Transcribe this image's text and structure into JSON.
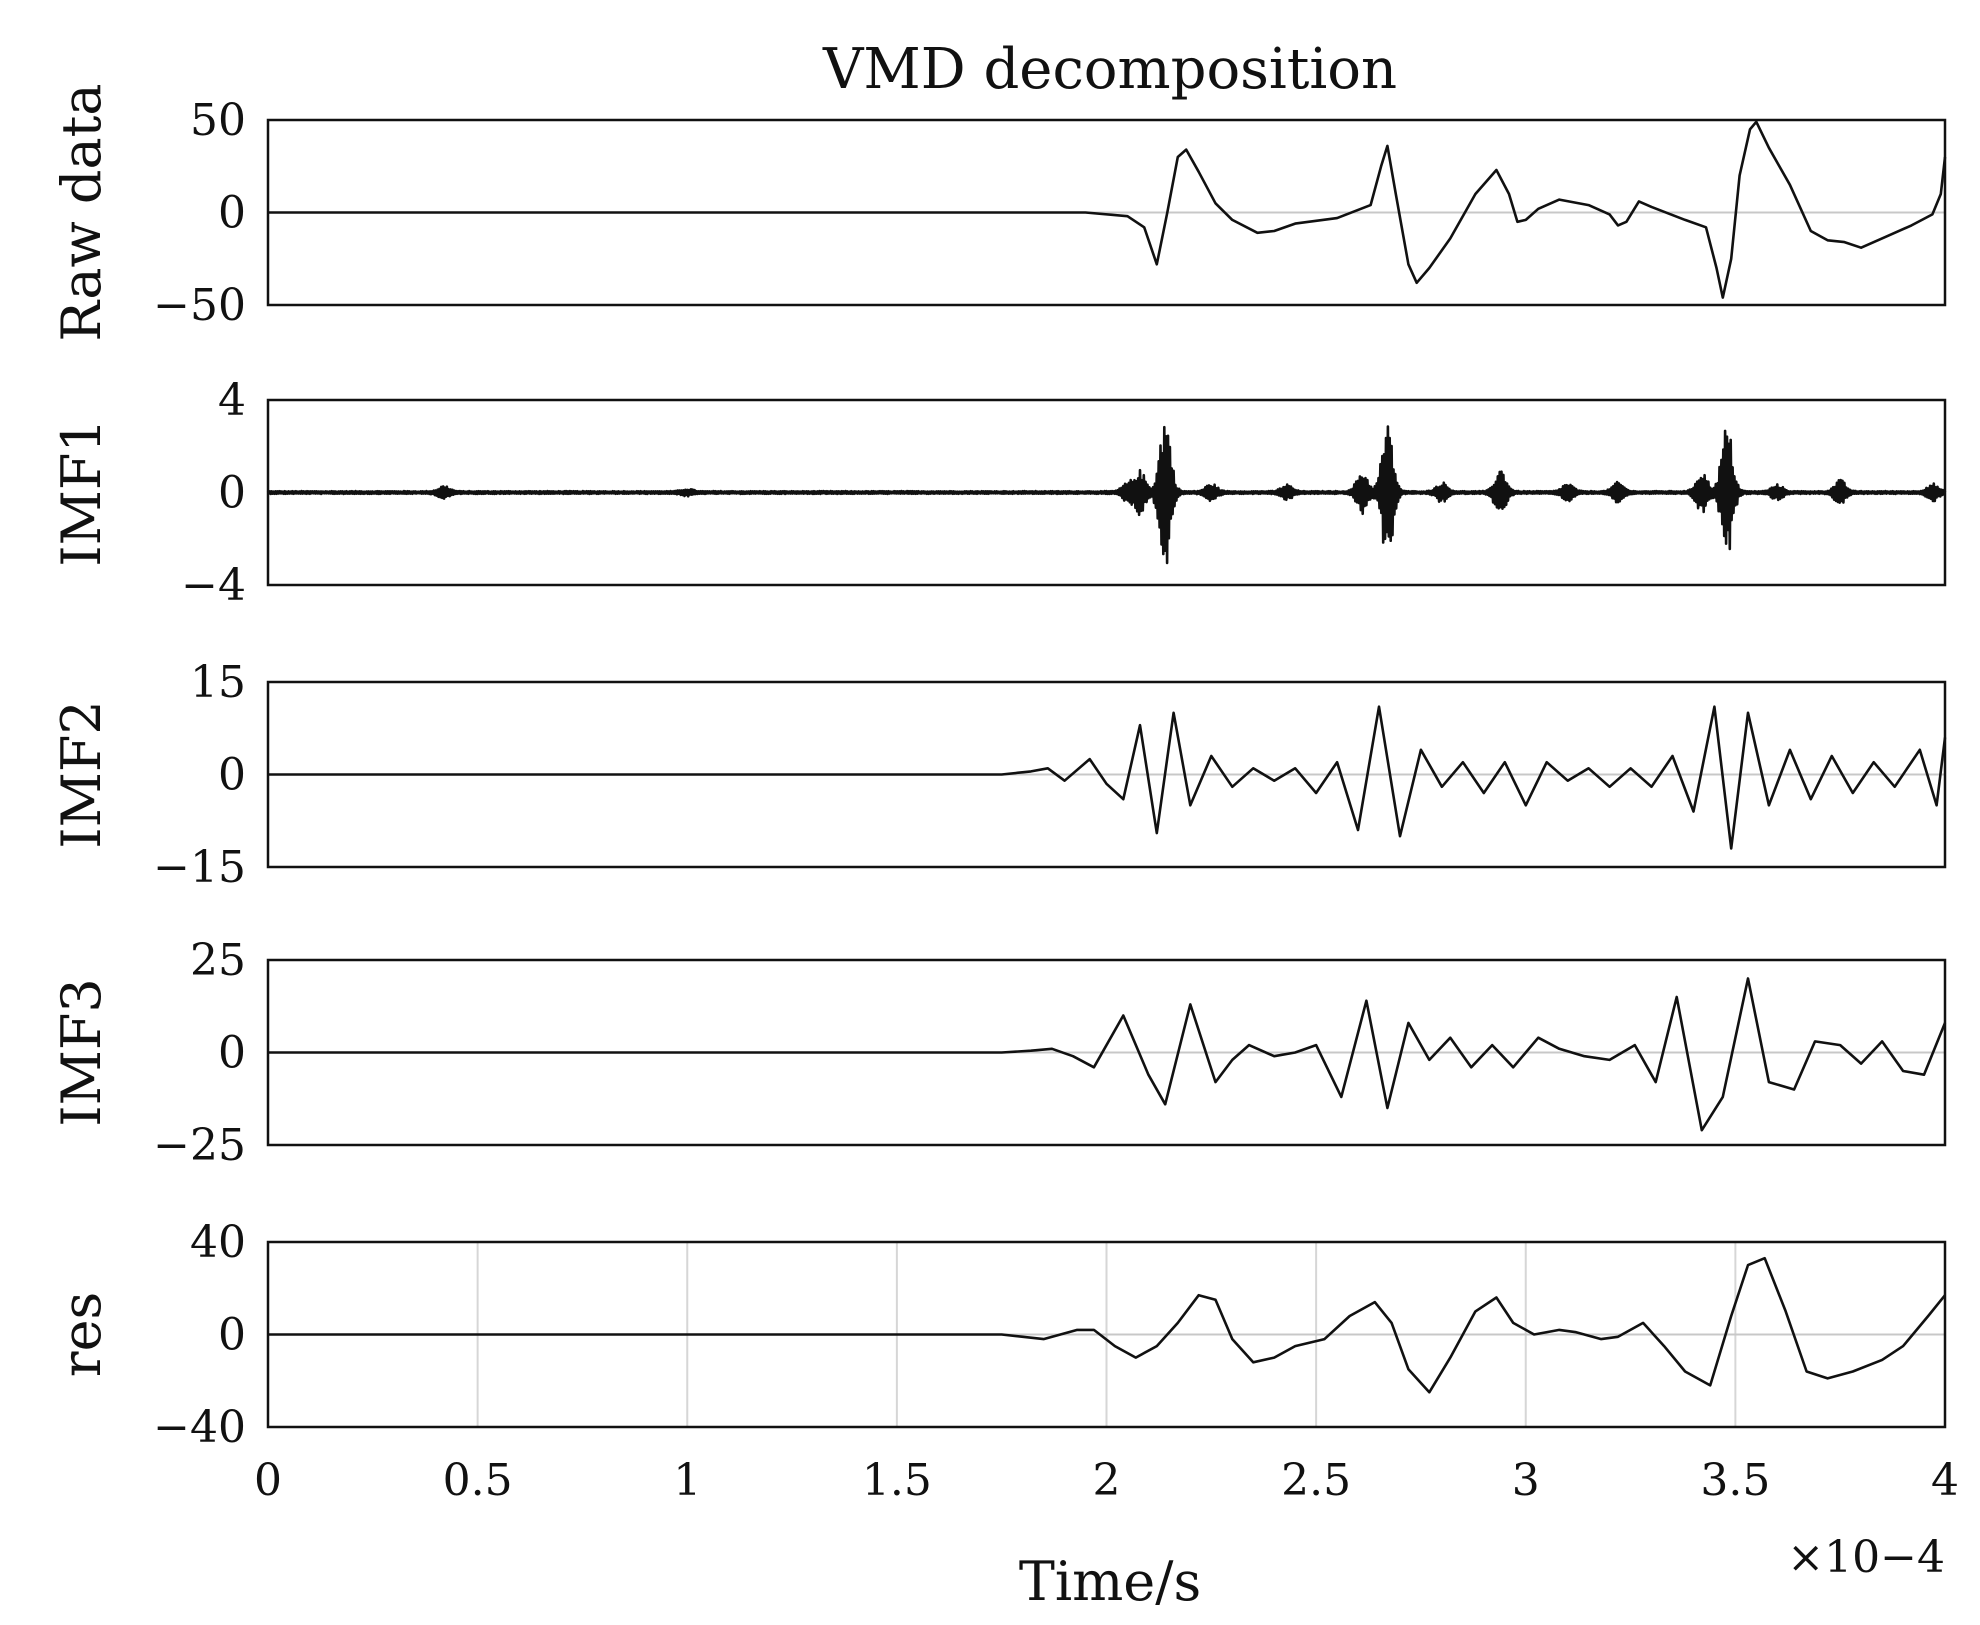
{
  "chart_data": {
    "type": "line",
    "title": "VMD decomposition",
    "xlabel": "Time/s",
    "x_exponent": "×10−4",
    "x_scale_power": -4,
    "xlim": [
      0,
      4
    ],
    "xticks": [
      0,
      0.5,
      1,
      1.5,
      2,
      2.5,
      3,
      3.5,
      4
    ],
    "xtick_labels": [
      "0",
      "0.5",
      "1",
      "1.5",
      "2",
      "2.5",
      "3",
      "3.5",
      "4"
    ],
    "grid_bottom_panel": true,
    "panels": [
      {
        "ylabel": "Raw data",
        "ylim": [
          -50,
          50
        ],
        "ytick_labels": [
          "50",
          "0",
          "−50"
        ],
        "points": [
          [
            0,
            0
          ],
          [
            1.8,
            0
          ],
          [
            1.95,
            0
          ],
          [
            2.05,
            -2
          ],
          [
            2.09,
            -8
          ],
          [
            2.12,
            -28
          ],
          [
            2.145,
            0
          ],
          [
            2.17,
            30
          ],
          [
            2.19,
            34
          ],
          [
            2.22,
            22
          ],
          [
            2.26,
            5
          ],
          [
            2.3,
            -4
          ],
          [
            2.36,
            -11
          ],
          [
            2.4,
            -10
          ],
          [
            2.45,
            -6
          ],
          [
            2.55,
            -3
          ],
          [
            2.63,
            4
          ],
          [
            2.655,
            25
          ],
          [
            2.67,
            36
          ],
          [
            2.69,
            10
          ],
          [
            2.72,
            -28
          ],
          [
            2.74,
            -38
          ],
          [
            2.77,
            -30
          ],
          [
            2.82,
            -14
          ],
          [
            2.88,
            10
          ],
          [
            2.93,
            23
          ],
          [
            2.96,
            10
          ],
          [
            2.98,
            -5
          ],
          [
            3.0,
            -4
          ],
          [
            3.03,
            2
          ],
          [
            3.08,
            7
          ],
          [
            3.15,
            4
          ],
          [
            3.2,
            -1
          ],
          [
            3.22,
            -7
          ],
          [
            3.24,
            -5
          ],
          [
            3.27,
            6
          ],
          [
            3.3,
            3
          ],
          [
            3.38,
            -4
          ],
          [
            3.43,
            -8
          ],
          [
            3.455,
            -30
          ],
          [
            3.47,
            -46
          ],
          [
            3.49,
            -25
          ],
          [
            3.51,
            20
          ],
          [
            3.535,
            45
          ],
          [
            3.55,
            49
          ],
          [
            3.58,
            35
          ],
          [
            3.63,
            15
          ],
          [
            3.68,
            -10
          ],
          [
            3.72,
            -15
          ],
          [
            3.76,
            -16
          ],
          [
            3.8,
            -19
          ],
          [
            3.86,
            -13
          ],
          [
            3.92,
            -7
          ],
          [
            3.97,
            -1
          ],
          [
            3.99,
            10
          ],
          [
            4.0,
            30
          ]
        ]
      },
      {
        "ylabel": "IMF1",
        "ylim": [
          -4,
          4
        ],
        "ytick_labels": [
          "4",
          "0",
          "−4"
        ],
        "bursts": [
          [
            0.42,
            0.25
          ],
          [
            1.0,
            0.12
          ],
          [
            2.05,
            0.35
          ],
          [
            2.08,
            0.9
          ],
          [
            2.14,
            3.3
          ],
          [
            2.25,
            0.35
          ],
          [
            2.43,
            0.3
          ],
          [
            2.61,
            0.9
          ],
          [
            2.67,
            2.9
          ],
          [
            2.8,
            0.4
          ],
          [
            2.94,
            1.0
          ],
          [
            3.1,
            0.35
          ],
          [
            3.22,
            0.4
          ],
          [
            3.42,
            0.9
          ],
          [
            3.48,
            2.9
          ],
          [
            3.6,
            0.3
          ],
          [
            3.75,
            0.5
          ],
          [
            3.97,
            0.35
          ]
        ],
        "noise": 0.06
      },
      {
        "ylabel": "IMF2",
        "ylim": [
          -15,
          15
        ],
        "ytick_labels": [
          "15",
          "0",
          "−15"
        ],
        "points": [
          [
            0,
            0
          ],
          [
            1.75,
            0
          ],
          [
            1.82,
            0.5
          ],
          [
            1.86,
            1
          ],
          [
            1.9,
            -1
          ],
          [
            1.96,
            2.5
          ],
          [
            2.0,
            -1.5
          ],
          [
            2.04,
            -4
          ],
          [
            2.08,
            8
          ],
          [
            2.12,
            -9.5
          ],
          [
            2.16,
            10
          ],
          [
            2.2,
            -5
          ],
          [
            2.25,
            3
          ],
          [
            2.3,
            -2
          ],
          [
            2.35,
            1
          ],
          [
            2.4,
            -1
          ],
          [
            2.45,
            1
          ],
          [
            2.5,
            -3
          ],
          [
            2.55,
            2
          ],
          [
            2.6,
            -9
          ],
          [
            2.65,
            11
          ],
          [
            2.7,
            -10
          ],
          [
            2.75,
            4
          ],
          [
            2.8,
            -2
          ],
          [
            2.85,
            2
          ],
          [
            2.9,
            -3
          ],
          [
            2.95,
            2
          ],
          [
            3.0,
            -5
          ],
          [
            3.05,
            2
          ],
          [
            3.1,
            -1
          ],
          [
            3.15,
            1
          ],
          [
            3.2,
            -2
          ],
          [
            3.25,
            1
          ],
          [
            3.3,
            -2
          ],
          [
            3.35,
            3
          ],
          [
            3.4,
            -6
          ],
          [
            3.45,
            11
          ],
          [
            3.49,
            -12
          ],
          [
            3.53,
            10
          ],
          [
            3.58,
            -5
          ],
          [
            3.63,
            4
          ],
          [
            3.68,
            -4
          ],
          [
            3.73,
            3
          ],
          [
            3.78,
            -3
          ],
          [
            3.83,
            2
          ],
          [
            3.88,
            -2
          ],
          [
            3.94,
            4
          ],
          [
            3.98,
            -5
          ],
          [
            4.0,
            6
          ]
        ]
      },
      {
        "ylabel": "IMF3",
        "ylim": [
          -25,
          25
        ],
        "ytick_labels": [
          "25",
          "0",
          "−25"
        ],
        "points": [
          [
            0,
            0
          ],
          [
            1.75,
            0
          ],
          [
            1.82,
            0.5
          ],
          [
            1.87,
            1
          ],
          [
            1.92,
            -1
          ],
          [
            1.97,
            -4
          ],
          [
            2.04,
            10
          ],
          [
            2.1,
            -6
          ],
          [
            2.14,
            -14
          ],
          [
            2.2,
            13
          ],
          [
            2.26,
            -8
          ],
          [
            2.3,
            -2
          ],
          [
            2.34,
            2
          ],
          [
            2.4,
            -1
          ],
          [
            2.45,
            0
          ],
          [
            2.5,
            2
          ],
          [
            2.56,
            -12
          ],
          [
            2.62,
            14
          ],
          [
            2.67,
            -15
          ],
          [
            2.72,
            8
          ],
          [
            2.77,
            -2
          ],
          [
            2.82,
            4
          ],
          [
            2.87,
            -4
          ],
          [
            2.92,
            2
          ],
          [
            2.97,
            -4
          ],
          [
            3.03,
            4
          ],
          [
            3.08,
            1
          ],
          [
            3.14,
            -1
          ],
          [
            3.2,
            -2
          ],
          [
            3.26,
            2
          ],
          [
            3.31,
            -8
          ],
          [
            3.36,
            15
          ],
          [
            3.42,
            -21
          ],
          [
            3.47,
            -12
          ],
          [
            3.53,
            20
          ],
          [
            3.58,
            -8
          ],
          [
            3.64,
            -10
          ],
          [
            3.69,
            3
          ],
          [
            3.75,
            2
          ],
          [
            3.8,
            -3
          ],
          [
            3.85,
            3
          ],
          [
            3.9,
            -5
          ],
          [
            3.95,
            -6
          ],
          [
            4.0,
            8
          ]
        ]
      },
      {
        "ylabel": "res",
        "ylim": [
          -40,
          40
        ],
        "ytick_labels": [
          "40",
          "0",
          "−40"
        ],
        "points": [
          [
            0,
            0
          ],
          [
            1.75,
            0
          ],
          [
            1.85,
            -2
          ],
          [
            1.93,
            2
          ],
          [
            1.97,
            2
          ],
          [
            2.02,
            -5
          ],
          [
            2.07,
            -10
          ],
          [
            2.12,
            -5
          ],
          [
            2.17,
            5
          ],
          [
            2.22,
            17
          ],
          [
            2.26,
            15
          ],
          [
            2.3,
            -2
          ],
          [
            2.35,
            -12
          ],
          [
            2.4,
            -10
          ],
          [
            2.45,
            -5
          ],
          [
            2.52,
            -2
          ],
          [
            2.58,
            8
          ],
          [
            2.64,
            14
          ],
          [
            2.68,
            5
          ],
          [
            2.72,
            -15
          ],
          [
            2.77,
            -25
          ],
          [
            2.82,
            -10
          ],
          [
            2.88,
            10
          ],
          [
            2.93,
            16
          ],
          [
            2.97,
            5
          ],
          [
            3.02,
            0
          ],
          [
            3.08,
            2
          ],
          [
            3.12,
            1
          ],
          [
            3.18,
            -2
          ],
          [
            3.22,
            -1
          ],
          [
            3.28,
            5
          ],
          [
            3.33,
            -5
          ],
          [
            3.38,
            -16
          ],
          [
            3.44,
            -22
          ],
          [
            3.49,
            8
          ],
          [
            3.53,
            30
          ],
          [
            3.57,
            33
          ],
          [
            3.62,
            10
          ],
          [
            3.67,
            -16
          ],
          [
            3.72,
            -19
          ],
          [
            3.78,
            -16
          ],
          [
            3.85,
            -11
          ],
          [
            3.9,
            -5
          ],
          [
            3.96,
            8
          ],
          [
            4.0,
            17
          ]
        ]
      }
    ]
  }
}
